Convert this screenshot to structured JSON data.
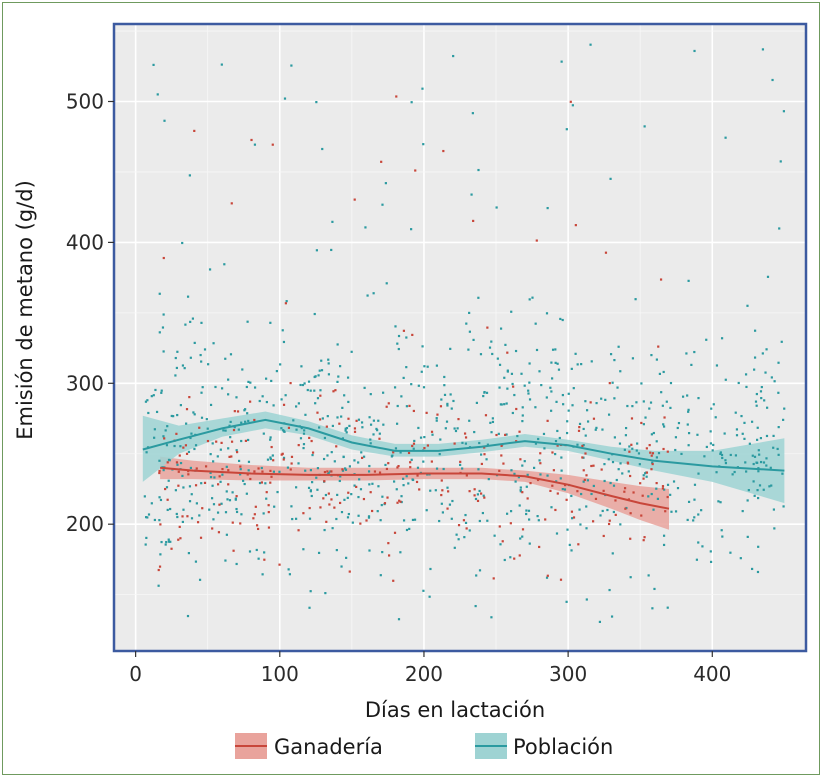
{
  "chart_data": {
    "type": "scatter",
    "xlabel": "Días en lactación",
    "ylabel": "Emisión de metano (g/d)",
    "xlim": [
      -15,
      465
    ],
    "ylim": [
      110,
      555
    ],
    "x_ticks": [
      0,
      100,
      200,
      300,
      400
    ],
    "y_ticks": [
      200,
      300,
      400,
      500
    ],
    "grid": true,
    "legend_position": "bottom",
    "background_color": "#ebebeb",
    "series": [
      {
        "name": "Ganadería",
        "color": "#c8463a",
        "band_color": "#e9a39c",
        "smooth": {
          "x": [
            17,
            40,
            80,
            120,
            160,
            200,
            240,
            270,
            300,
            330,
            350,
            370
          ],
          "y": [
            240,
            238,
            236,
            235,
            235,
            236,
            236,
            234,
            228,
            220,
            215,
            211
          ],
          "lower": [
            232,
            232,
            231,
            231,
            231,
            232,
            232,
            230,
            222,
            211,
            203,
            196
          ],
          "upper": [
            248,
            245,
            242,
            240,
            240,
            240,
            240,
            238,
            235,
            230,
            227,
            225
          ]
        },
        "n_points": 320,
        "x_range": [
          15,
          370
        ],
        "center": 235,
        "spread": 42
      },
      {
        "name": "Población",
        "color": "#2b9aa0",
        "band_color": "#9ed3d3",
        "smooth": {
          "x": [
            5,
            30,
            60,
            90,
            120,
            150,
            180,
            210,
            240,
            270,
            300,
            330,
            360,
            400,
            450
          ],
          "y": [
            253,
            260,
            268,
            274,
            268,
            258,
            252,
            252,
            255,
            259,
            256,
            250,
            245,
            241,
            238
          ],
          "lower": [
            230,
            250,
            262,
            268,
            263,
            253,
            248,
            248,
            251,
            255,
            252,
            245,
            238,
            230,
            215
          ],
          "upper": [
            277,
            270,
            275,
            280,
            273,
            263,
            257,
            257,
            260,
            264,
            260,
            255,
            252,
            252,
            261
          ]
        },
        "n_points": 950,
        "x_range": [
          5,
          450
        ],
        "center": 255,
        "spread": 62
      }
    ]
  }
}
